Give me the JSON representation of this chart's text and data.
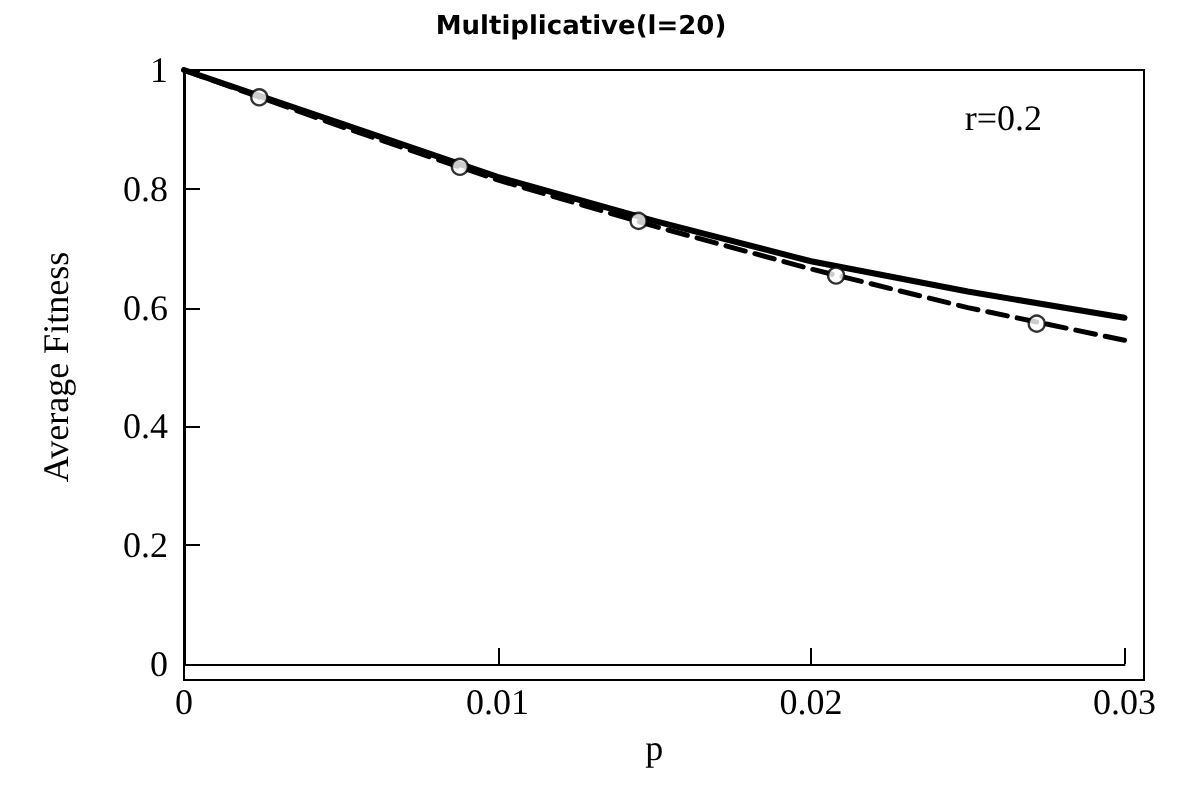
{
  "chart_data": {
    "type": "line",
    "title": "Multiplicative(l=20)",
    "xlabel": "p",
    "ylabel": "Average Fitness",
    "annotations": [
      "r=0.2"
    ],
    "xlim": [
      0,
      0.03
    ],
    "xticks": [
      0,
      0.01,
      0.02,
      0.03
    ],
    "ylim": [
      0,
      1
    ],
    "yticks": [
      0,
      0.2,
      0.4,
      0.6,
      0.8,
      1
    ],
    "grid": false,
    "series": [
      {
        "color": "#000000",
        "line_style": "solid",
        "marker": "none",
        "x": [
          0,
          0.005,
          0.01,
          0.015,
          0.02,
          0.025,
          0.03
        ],
        "values": [
          1,
          0.91,
          0.82,
          0.746,
          0.678,
          0.627,
          0.583
        ]
      },
      {
        "color": "#000000",
        "line_style": "dashed",
        "marker": "none",
        "x": [
          0,
          0.005,
          0.01,
          0.015,
          0.02,
          0.025,
          0.03
        ],
        "values": [
          1,
          0.905,
          0.815,
          0.737,
          0.665,
          0.6,
          0.545
        ]
      },
      {
        "type": "scatter",
        "color": "#000000",
        "marker": "circle",
        "x": [
          0.0024,
          0.0088,
          0.0145,
          0.0208,
          0.0272
        ],
        "values": [
          0.954,
          0.837,
          0.746,
          0.654,
          0.573
        ]
      }
    ]
  }
}
